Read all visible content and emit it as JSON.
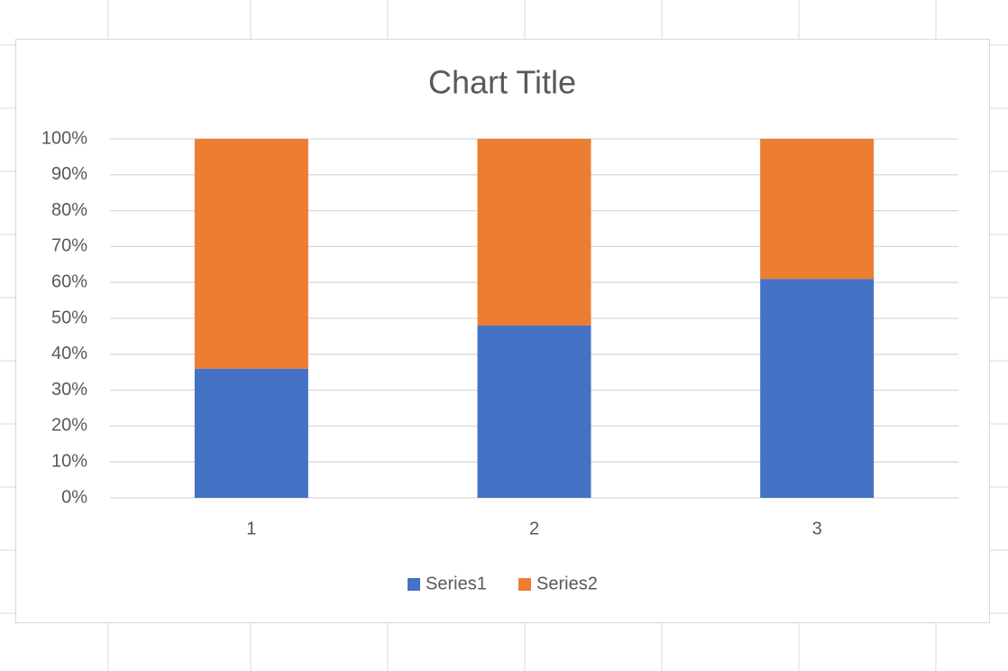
{
  "chart_data": {
    "type": "stacked-bar-100",
    "title": "Chart Title",
    "categories": [
      "1",
      "2",
      "3"
    ],
    "series": [
      {
        "name": "Series1",
        "color": "#4472c4",
        "values": [
          36,
          48,
          61
        ]
      },
      {
        "name": "Series2",
        "color": "#ed7d31",
        "values": [
          64,
          52,
          39
        ]
      }
    ],
    "ylim": [
      0,
      100
    ],
    "yticks": [
      {
        "value": 0,
        "label": "0%"
      },
      {
        "value": 10,
        "label": "10%"
      },
      {
        "value": 20,
        "label": "20%"
      },
      {
        "value": 30,
        "label": "30%"
      },
      {
        "value": 40,
        "label": "40%"
      },
      {
        "value": 50,
        "label": "50%"
      },
      {
        "value": 60,
        "label": "60%"
      },
      {
        "value": 70,
        "label": "70%"
      },
      {
        "value": 80,
        "label": "80%"
      },
      {
        "value": 90,
        "label": "90%"
      },
      {
        "value": 100,
        "label": "100%"
      }
    ],
    "grid": true,
    "legend": "bottom"
  }
}
